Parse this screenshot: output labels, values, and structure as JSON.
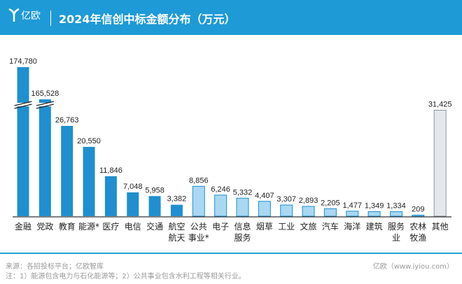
{
  "header": {
    "brand": "亿欧",
    "title": "2024年信创中标金额分布（万元）"
  },
  "chart_data": {
    "type": "bar",
    "title": "2024年信创中标金额分布（万元）",
    "categories": [
      "金融",
      "党政",
      "教育",
      "能源*",
      "医疗",
      "电信",
      "交通",
      "航空航天",
      "公共事业*",
      "电子",
      "信息服务",
      "烟草",
      "工业",
      "文旅",
      "汽车",
      "海洋",
      "建筑",
      "服务业",
      "农林牧渔",
      "其他"
    ],
    "category_lines": [
      [
        "金融"
      ],
      [
        "党政"
      ],
      [
        "教育"
      ],
      [
        "能源*"
      ],
      [
        "医疗"
      ],
      [
        "电信"
      ],
      [
        "交通"
      ],
      [
        "航空",
        "航天"
      ],
      [
        "公共",
        "事业*"
      ],
      [
        "电子"
      ],
      [
        "信息",
        "服务"
      ],
      [
        "烟草"
      ],
      [
        "工业"
      ],
      [
        "文旅"
      ],
      [
        "汽车"
      ],
      [
        "海洋"
      ],
      [
        "建筑"
      ],
      [
        "服务",
        "业"
      ],
      [
        "农林",
        "牧渔"
      ],
      [
        "其他"
      ]
    ],
    "values": [
      174780,
      165528,
      26763,
      20550,
      11846,
      7048,
      5958,
      3382,
      8856,
      6246,
      5332,
      4407,
      3307,
      2893,
      2205,
      1477,
      1349,
      1334,
      209,
      31425
    ],
    "labels": [
      "174,780",
      "165,528",
      "26,763",
      "20,550",
      "11,846",
      "7,048",
      "5,958",
      "3,382",
      "8,856",
      "6,246",
      "5,332",
      "4,407",
      "3,307",
      "2,893",
      "2,205",
      "1,477",
      "1,349",
      "1,334",
      "209",
      "31,425"
    ],
    "groups": [
      "dark",
      "dark",
      "dark",
      "dark",
      "dark",
      "dark",
      "dark",
      "dark",
      "light",
      "light",
      "light",
      "light",
      "light",
      "light",
      "light",
      "light",
      "light",
      "light",
      "light",
      "gray"
    ],
    "broken_axis": [
      0,
      1
    ],
    "colors": {
      "dark": "#1f8fd0",
      "light": "#a9d8f2",
      "gray": "#e4e8ec",
      "outline": "#1f8fd0"
    }
  },
  "footer": {
    "source": "来源：各招投标平台；亿欧智库",
    "note": "注：1）能源包含电力与石化能源等；2）公共事业包含水利工程等相关行业。",
    "credit": "亿欧（www.iyiou.com）"
  }
}
